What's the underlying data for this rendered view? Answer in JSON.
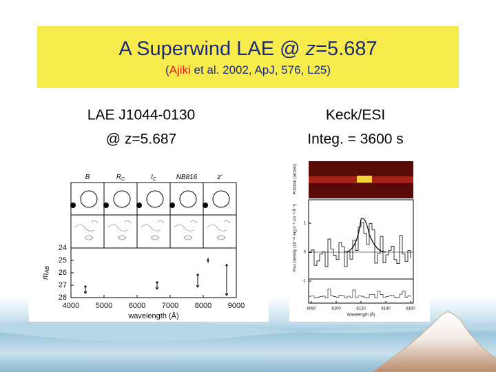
{
  "header": {
    "title": {
      "main": "A Superwind LAE @ ",
      "italic": "z",
      "rest": "=5.687"
    },
    "citation": {
      "open": "(",
      "author": "Ajiki",
      "rest": " et al. 2002, ApJ, 576, L25)"
    }
  },
  "left": {
    "lines": [
      "LAE J1044-0130",
      "@ z=5.687"
    ],
    "figure": {
      "bands": [
        {
          "name": "B"
        },
        {
          "name": "R",
          "sub": "C"
        },
        {
          "name": "I",
          "sub": "C"
        },
        {
          "name": "NB816"
        },
        {
          "name": "z′"
        }
      ],
      "yticks": [
        "24",
        "25",
        "26",
        "27",
        "28"
      ],
      "xticks": [
        "4000",
        "5000",
        "6000",
        "7000",
        "8000",
        "9000"
      ],
      "ylabel": {
        "main": "m",
        "sub": "AB"
      },
      "xlabel": "wavelength (Å)"
    }
  },
  "right": {
    "lines": [
      "Keck/ESI",
      "Integ. = 3600 s"
    ],
    "figure": {
      "xticks": [
        "8080",
        "8100",
        "8120",
        "8140",
        "8160"
      ],
      "yticks": [
        "1",
        "0",
        "-1"
      ],
      "ylabel": "Flux Density (10⁻¹⁸ erg s⁻¹ cm⁻² Å⁻¹)",
      "y2label": "Position (arcsec)",
      "xlabel": "Wavelength (Å)"
    }
  }
}
